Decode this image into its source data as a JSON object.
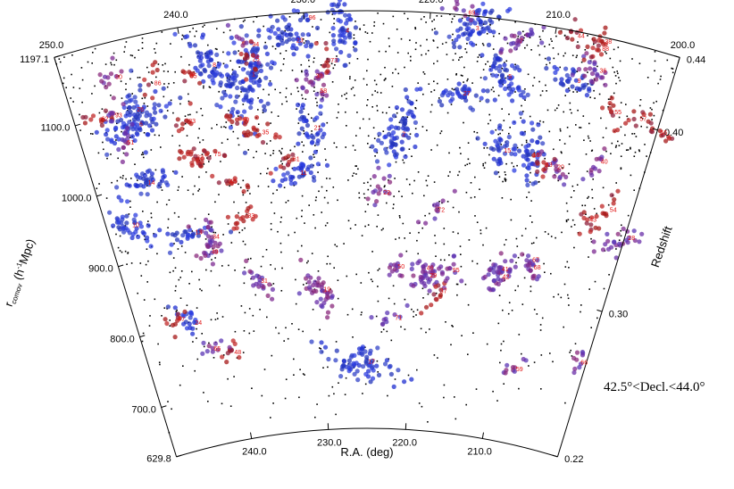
{
  "chart_data": {
    "type": "scatter",
    "title": "",
    "xlabel": "R.A. (deg)",
    "ylabel": "r_comov (h⁻¹Mpc)",
    "ylabel_parts": {
      "main": "r",
      "sub": "comov",
      "rest": " (h",
      "sup": "-1",
      "end": "Mpc)"
    },
    "ylabel_right": "Redshift",
    "annotation": "42.5°<Decl.<44.0°",
    "ra_range": [
      200.0,
      250.0
    ],
    "r_range": [
      629.8,
      1197.1
    ],
    "z_range": [
      0.22,
      0.44
    ],
    "ra_ticks": [
      "250.0",
      "240.0",
      "230.0",
      "220.0",
      "210.0",
      "200.0"
    ],
    "ra_tick_values": [
      250,
      240,
      230,
      220,
      210,
      200
    ],
    "bottom_ra_ticks": [
      "240.0",
      "230.0",
      "220.0",
      "210.0"
    ],
    "bottom_ra_tick_values": [
      240,
      230,
      220,
      210
    ],
    "r_tick_labels": [
      "629.8",
      "700.0",
      "800.0",
      "900.0",
      "1000.0",
      "1100.0",
      "1197.1"
    ],
    "r_tick_values": [
      629.8,
      700,
      800,
      900,
      1000,
      1100,
      1197.1
    ],
    "z_tick_labels": [
      "0.22",
      "0.30",
      "0.40",
      "0.44"
    ],
    "z_tick_values": [
      0.22,
      0.3,
      0.4,
      0.44
    ],
    "legend": "none",
    "grid": false,
    "colors": {
      "field": "#000000",
      "blue": "#2a3cd6",
      "purple": "#7a2c9a",
      "red": "#b01c1c",
      "label": "#e01010"
    },
    "background_galaxies": {
      "count": 1500,
      "color": "#000000"
    },
    "groups": [
      {
        "id": "1",
        "ra": 234.9,
        "r": 1120.0,
        "color": "blue",
        "n": 130
      },
      {
        "id": "2",
        "ra": 222.2,
        "r": 1030.0,
        "color": "blue",
        "n": 70
      },
      {
        "id": "3",
        "ra": 216.6,
        "r": 1180.0,
        "color": "blue",
        "n": 60
      },
      {
        "id": "4",
        "ra": 227.0,
        "r": 1170.0,
        "color": "blue",
        "n": 55
      },
      {
        "id": "5",
        "ra": 213.5,
        "r": 1120.0,
        "color": "blue",
        "n": 55
      },
      {
        "id": "6",
        "ra": 245.0,
        "r": 1080.0,
        "color": "blue",
        "n": 70
      },
      {
        "id": "7",
        "ra": 213.0,
        "r": 1170.0,
        "color": "purple",
        "n": 25
      },
      {
        "id": "8",
        "ra": 238.0,
        "r": 1140.0,
        "color": "blue",
        "n": 55
      },
      {
        "id": "9",
        "ra": 207.8,
        "r": 1130.0,
        "color": "blue",
        "n": 35
      },
      {
        "id": "10",
        "ra": 247.9,
        "r": 950.0,
        "color": "blue",
        "n": 40
      },
      {
        "id": "11",
        "ra": 231.5,
        "r": 980.0,
        "color": "blue",
        "n": 35
      },
      {
        "id": "13",
        "ra": 242.2,
        "r": 920.0,
        "color": "blue",
        "n": 25
      },
      {
        "id": "14",
        "ra": 245.5,
        "r": 1000.0,
        "color": "blue",
        "n": 40
      },
      {
        "id": "15",
        "ra": 213.0,
        "r": 1020.0,
        "color": "blue",
        "n": 30
      },
      {
        "id": "16",
        "ra": 210.4,
        "r": 1020.0,
        "color": "blue",
        "n": 45
      },
      {
        "id": "17",
        "ra": 225.3,
        "r": 720.0,
        "color": "blue",
        "n": 70
      },
      {
        "id": "19",
        "ra": 230.0,
        "r": 820.0,
        "color": "purple",
        "n": 40
      },
      {
        "id": "20",
        "ra": 208.0,
        "r": 1010.0,
        "color": "purple",
        "n": 18
      },
      {
        "id": "21",
        "ra": 230.0,
        "r": 1040.0,
        "color": "blue",
        "n": 35
      },
      {
        "id": "22",
        "ra": 223.8,
        "r": 950.0,
        "color": "purple",
        "n": 15
      },
      {
        "id": "23",
        "ra": 231.0,
        "r": 1160.0,
        "color": "blue",
        "n": 40
      },
      {
        "id": "24",
        "ra": 244.2,
        "r": 800.0,
        "color": "blue",
        "n": 20
      },
      {
        "id": "25",
        "ra": 234.7,
        "r": 1140.0,
        "color": "red",
        "n": 12
      },
      {
        "id": "26",
        "ra": 244.9,
        "r": 1100.0,
        "color": "blue",
        "n": 25
      },
      {
        "id": "27",
        "ra": 217.1,
        "r": 1090.0,
        "color": "blue",
        "n": 40
      },
      {
        "id": "28",
        "ra": 200.0,
        "r": 940.0,
        "color": "purple",
        "n": 25
      },
      {
        "id": "29",
        "ra": 218.8,
        "r": 840.0,
        "color": "purple",
        "n": 30
      },
      {
        "id": "30",
        "ra": 229.6,
        "r": 1110.0,
        "color": "purple",
        "n": 15
      },
      {
        "id": "31",
        "ra": 236.5,
        "r": 840.0,
        "color": "purple",
        "n": 20
      },
      {
        "id": "32",
        "ra": 240.7,
        "r": 1020.0,
        "color": "red",
        "n": 20
      },
      {
        "id": "33",
        "ra": 236.9,
        "r": 930.0,
        "color": "red",
        "n": 15
      },
      {
        "id": "34",
        "ra": 240.6,
        "r": 910.0,
        "color": "purple",
        "n": 18
      },
      {
        "id": "35",
        "ra": 234.6,
        "r": 1040.0,
        "color": "red",
        "n": 15
      },
      {
        "id": "36",
        "ra": 206.2,
        "r": 1150.0,
        "color": "purple",
        "n": 22
      },
      {
        "id": "37",
        "ra": 217.6,
        "r": 820.0,
        "color": "red",
        "n": 12
      },
      {
        "id": "38",
        "ra": 206.3,
        "r": 1190.0,
        "color": "red",
        "n": 10
      },
      {
        "id": "40",
        "ra": 204.3,
        "r": 1030.0,
        "color": "purple",
        "n": 12
      },
      {
        "id": "41",
        "ra": 211.5,
        "r": 860.0,
        "color": "purple",
        "n": 25
      },
      {
        "id": "42",
        "ra": 211.3,
        "r": 850.0,
        "color": "purple",
        "n": 15
      },
      {
        "id": "43",
        "ra": 204.0,
        "r": 950.0,
        "color": "red",
        "n": 12
      },
      {
        "id": "44",
        "ra": 208.5,
        "r": 1190.0,
        "color": "red",
        "n": 10
      },
      {
        "id": "45",
        "ra": 238.1,
        "r": 980.0,
        "color": "red",
        "n": 12
      },
      {
        "id": "46",
        "ra": 219.2,
        "r": 850.0,
        "color": "purple",
        "n": 15
      },
      {
        "id": "47",
        "ra": 245.9,
        "r": 810.0,
        "color": "red",
        "n": 10
      },
      {
        "id": "48",
        "ra": 240.6,
        "r": 750.0,
        "color": "red",
        "n": 10
      },
      {
        "id": "49",
        "ra": 241.0,
        "r": 890.0,
        "color": "purple",
        "n": 15
      },
      {
        "id": "50",
        "ra": 222.2,
        "r": 850.0,
        "color": "purple",
        "n": 12
      },
      {
        "id": "51",
        "ra": 246.4,
        "r": 1060.0,
        "color": "purple",
        "n": 15
      },
      {
        "id": "54",
        "ra": 202.4,
        "r": 970.0,
        "color": "red",
        "n": 10
      },
      {
        "id": "55",
        "ra": 204.2,
        "r": 1100.0,
        "color": "red",
        "n": 10
      },
      {
        "id": "56",
        "ra": 200.0,
        "r": 1090.0,
        "color": "red",
        "n": 10
      },
      {
        "id": "57",
        "ra": 202.0,
        "r": 1100.0,
        "color": "red",
        "n": 10
      },
      {
        "id": "58",
        "ra": 229.3,
        "r": 1090.0,
        "color": "purple",
        "n": 10
      },
      {
        "id": "59",
        "ra": 208.0,
        "r": 730.0,
        "color": "purple",
        "n": 10
      },
      {
        "id": "60",
        "ra": 236.2,
        "r": 1060.0,
        "color": "red",
        "n": 12
      },
      {
        "id": "61",
        "ra": 232.1,
        "r": 1000.0,
        "color": "red",
        "n": 10
      },
      {
        "id": "62",
        "ra": 248.0,
        "r": 1100.0,
        "color": "red",
        "n": 12
      },
      {
        "id": "63",
        "ra": 209.1,
        "r": 1010.0,
        "color": "red",
        "n": 10
      },
      {
        "id": "65",
        "ra": 242.8,
        "r": 760.0,
        "color": "purple",
        "n": 10
      },
      {
        "id": "66",
        "ra": 201.0,
        "r": 760.0,
        "color": "purple",
        "n": 10
      },
      {
        "id": "67",
        "ra": 208.6,
        "r": 880.0,
        "color": "purple",
        "n": 10
      },
      {
        "id": "68",
        "ra": 208.3,
        "r": 870.0,
        "color": "purple",
        "n": 10
      },
      {
        "id": "69",
        "ra": 217.3,
        "r": 1200.0,
        "color": "purple",
        "n": 10
      },
      {
        "id": "71",
        "ra": 222.3,
        "r": 780.0,
        "color": "purple",
        "n": 10
      },
      {
        "id": "72",
        "ra": 218.5,
        "r": 930.0,
        "color": "purple",
        "n": 10
      },
      {
        "id": "73",
        "ra": 228.3,
        "r": 1130.0,
        "color": "red",
        "n": 10
      },
      {
        "id": "75",
        "ra": 239.1,
        "r": 1020.0,
        "color": "red",
        "n": 10
      },
      {
        "id": "80",
        "ra": 246.0,
        "r": 1150.0,
        "color": "purple",
        "n": 12
      },
      {
        "id": "83",
        "ra": 240.8,
        "r": 1070.0,
        "color": "red",
        "n": 10
      },
      {
        "id": "85",
        "ra": 240.0,
        "r": 1130.0,
        "color": "red",
        "n": 8
      },
      {
        "id": "86",
        "ra": 243.0,
        "r": 1130.0,
        "color": "red",
        "n": 8
      },
      {
        "id": "88",
        "ra": 206.4,
        "r": 1180.0,
        "color": "red",
        "n": 8
      },
      {
        "id": "93",
        "ra": 246.8,
        "r": 1100.0,
        "color": "purple",
        "n": 8
      },
      {
        "id": "94",
        "ra": 234.6,
        "r": 1160.0,
        "color": "purple",
        "n": 8
      },
      {
        "id": "95",
        "ra": 216.5,
        "r": 850.0,
        "color": "purple",
        "n": 8
      },
      {
        "id": "96",
        "ra": 229.9,
        "r": 1190.0,
        "color": "blue",
        "n": 8
      }
    ]
  }
}
